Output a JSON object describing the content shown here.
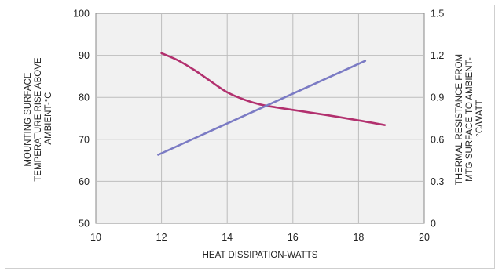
{
  "chart_data": {
    "type": "line",
    "title": "",
    "xlabel": "HEAT DISSIPATION-WATTS",
    "ylabel_left": [
      "MOUNTING SURFACE",
      "TEMPERATURE RISE ABOVE",
      "AMBIENT-°C"
    ],
    "ylabel_right": [
      "THERMAL RESISTANCE FROM",
      "MTG SURFACE TO AMBIENT-",
      "°C/WATT"
    ],
    "xlim": [
      10,
      20
    ],
    "ylim_left": [
      50,
      100
    ],
    "ylim_right": [
      0,
      1.5
    ],
    "x_ticks": [
      "10",
      "12",
      "14",
      "16",
      "18",
      "20"
    ],
    "y_left_ticks": [
      "50",
      "60",
      "70",
      "80",
      "90",
      "100"
    ],
    "y_right_ticks": [
      "0",
      "0.3",
      "0.6",
      "0.9",
      "1.2",
      "1.5"
    ],
    "grid": true,
    "series": [
      {
        "axis": "left",
        "color": "#b2306e",
        "points": [
          [
            12.0,
            90.5
          ],
          [
            12.5,
            88.8
          ],
          [
            13.0,
            86.5
          ],
          [
            13.5,
            83.8
          ],
          [
            14.0,
            81.2
          ],
          [
            14.5,
            79.5
          ],
          [
            15.0,
            78.3
          ],
          [
            15.5,
            77.6
          ],
          [
            16.0,
            77.0
          ],
          [
            17.0,
            75.8
          ],
          [
            18.0,
            74.5
          ],
          [
            18.8,
            73.4
          ]
        ]
      },
      {
        "axis": "right",
        "color": "#7b7bc4",
        "points": [
          [
            11.9,
            0.49
          ],
          [
            18.2,
            1.16
          ]
        ]
      }
    ]
  }
}
